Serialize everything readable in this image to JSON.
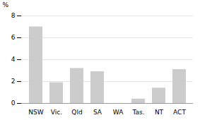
{
  "chart_data": {
    "type": "bar",
    "categories": [
      "NSW",
      "Vic.",
      "Qld",
      "SA",
      "WA",
      "Tas.",
      "NT",
      "ACT"
    ],
    "values": [
      7.0,
      1.9,
      3.2,
      2.9,
      0.0,
      0.4,
      1.4,
      3.1
    ],
    "color": "#cccccc",
    "ylabel": "%",
    "ylim": [
      0,
      8
    ],
    "yticks": [
      0,
      2,
      4,
      6,
      8
    ],
    "grid": true
  }
}
